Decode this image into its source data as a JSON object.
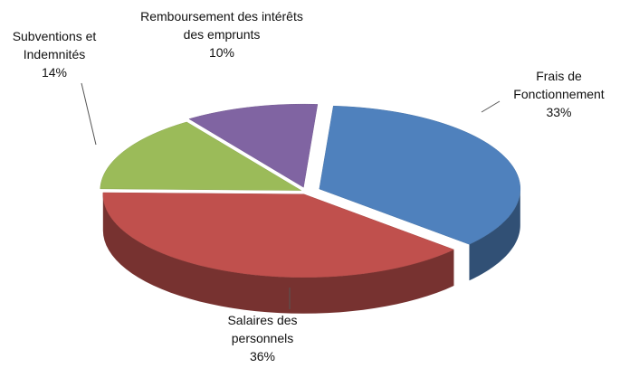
{
  "chart_data": {
    "type": "pie",
    "categories": [
      "Frais de Fonctionnement",
      "Salaires des personnels",
      "Subventions et Indemnités",
      "Remboursement des intérêts des emprunts"
    ],
    "values": [
      33,
      36,
      14,
      10
    ],
    "value_labels": [
      "33%",
      "36%",
      "14%",
      "10%"
    ],
    "colors": [
      "#4f81bd",
      "#c0504d",
      "#9bbb59",
      "#8064a2"
    ]
  }
}
